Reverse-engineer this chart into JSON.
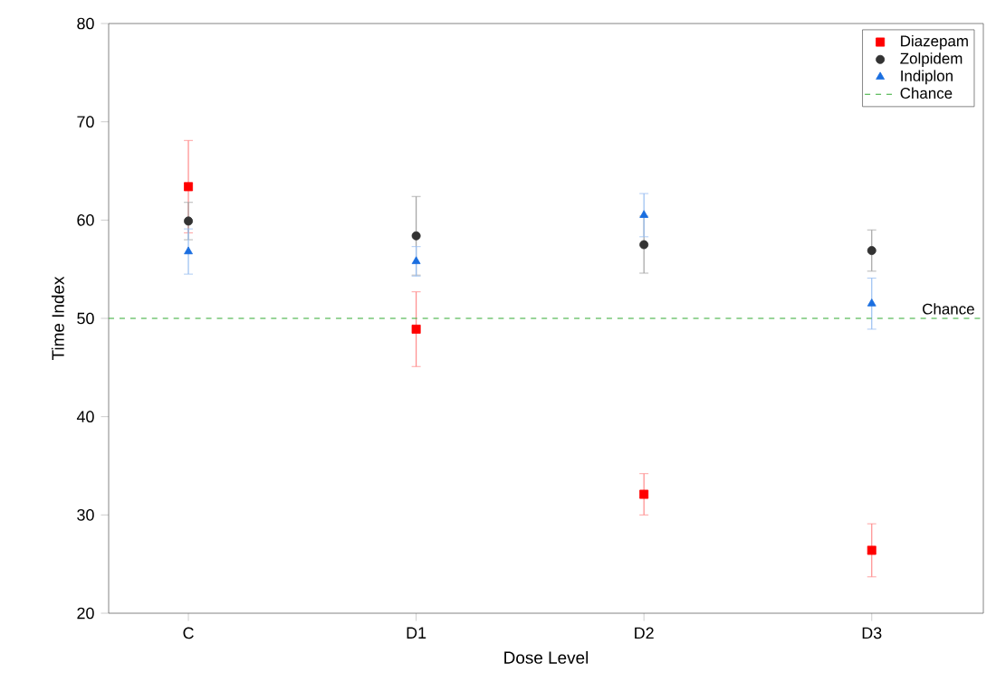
{
  "chart_data": {
    "type": "scatter",
    "xlabel": "Dose Level",
    "ylabel": "Time Index",
    "categories": [
      "C",
      "D1",
      "D2",
      "D3"
    ],
    "series": [
      {
        "name": "Diazepam",
        "color": "#ff0000",
        "marker": "square",
        "values": [
          63.4,
          48.9,
          32.1,
          26.4
        ],
        "errors": [
          4.7,
          3.8,
          2.1,
          2.7
        ]
      },
      {
        "name": "Zolpidem",
        "color": "#333333",
        "marker": "circle",
        "values": [
          59.9,
          58.4,
          57.5,
          56.9
        ],
        "errors": [
          1.9,
          4.0,
          2.9,
          2.1
        ]
      },
      {
        "name": "Indiplon",
        "color": "#1a6ee0",
        "marker": "triangle",
        "values": [
          56.8,
          55.8,
          60.5,
          51.5
        ],
        "errors": [
          2.3,
          1.5,
          2.2,
          2.6
        ]
      }
    ],
    "ylim": [
      20,
      80
    ],
    "yticks": [
      20,
      30,
      40,
      50,
      60,
      70,
      80
    ],
    "ref_lines": [
      {
        "axis": "y",
        "value": 50,
        "label": "Chance",
        "color": "#33aa33",
        "line_style": "dashed"
      }
    ],
    "grid": false,
    "legend": "top right"
  }
}
